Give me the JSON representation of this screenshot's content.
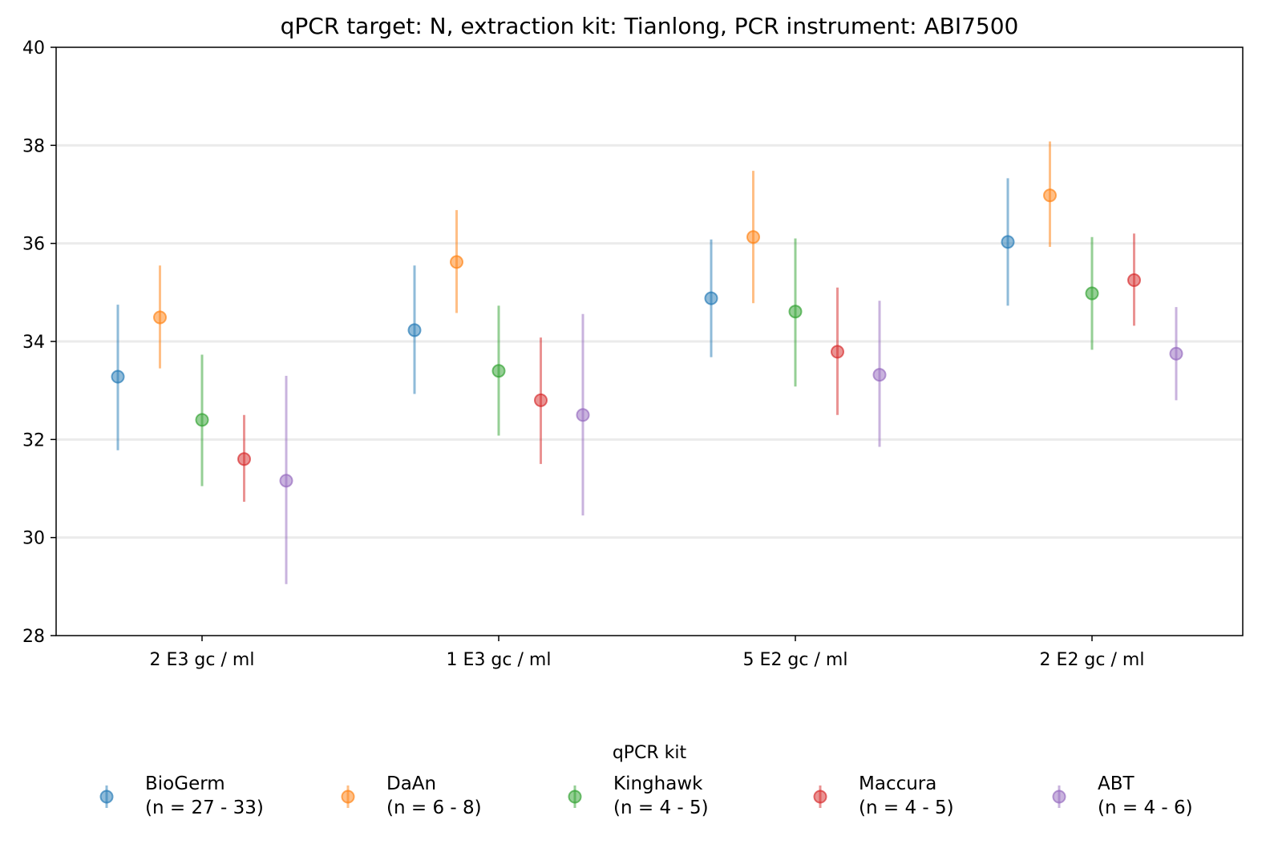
{
  "chart_data": {
    "type": "scatter",
    "title": "qPCR target: N, extraction kit: Tianlong, PCR instrument: ABI7500",
    "xlabel": "",
    "ylabel": "",
    "categories": [
      "2 E3 gc / ml",
      "1 E3 gc / ml",
      "5 E2 gc / ml",
      "2 E2 gc / ml"
    ],
    "ylim": [
      28,
      40
    ],
    "yticks": [
      28,
      30,
      32,
      34,
      36,
      38,
      40
    ],
    "grid": "horizontal",
    "legend": {
      "title": "qPCR kit",
      "placement": "bottom-center"
    },
    "series": [
      {
        "name": "BioGerm",
        "note": "(n = 27 - 33)",
        "color": "#1f77b4",
        "values": [
          33.28,
          34.23,
          34.88,
          36.03
        ],
        "lower": [
          31.78,
          32.93,
          33.68,
          34.73
        ],
        "upper": [
          34.75,
          35.55,
          36.08,
          37.33
        ]
      },
      {
        "name": "DaAn",
        "note": "(n = 6 - 8)",
        "color": "#ff7f0e",
        "values": [
          34.49,
          35.62,
          36.13,
          36.98
        ],
        "lower": [
          33.45,
          34.58,
          34.78,
          35.93
        ],
        "upper": [
          35.55,
          36.68,
          37.48,
          38.08
        ]
      },
      {
        "name": "Kinghawk",
        "note": "(n = 4 - 5)",
        "color": "#2ca02c",
        "values": [
          32.4,
          33.4,
          34.61,
          34.98
        ],
        "lower": [
          31.05,
          32.08,
          33.08,
          33.83
        ],
        "upper": [
          33.73,
          34.73,
          36.1,
          36.13
        ]
      },
      {
        "name": "Maccura",
        "note": "(n = 4 - 5)",
        "color": "#d62728",
        "values": [
          31.6,
          32.8,
          33.79,
          35.25
        ],
        "lower": [
          30.73,
          31.5,
          32.5,
          34.32
        ],
        "upper": [
          32.5,
          34.08,
          35.1,
          36.2
        ]
      },
      {
        "name": "ABT",
        "note": "(n = 4 - 6)",
        "color": "#9467bd",
        "values": [
          31.16,
          32.5,
          33.32,
          33.75
        ],
        "lower": [
          29.05,
          30.45,
          31.85,
          32.8
        ],
        "upper": [
          33.3,
          34.56,
          34.83,
          34.7
        ]
      }
    ]
  }
}
